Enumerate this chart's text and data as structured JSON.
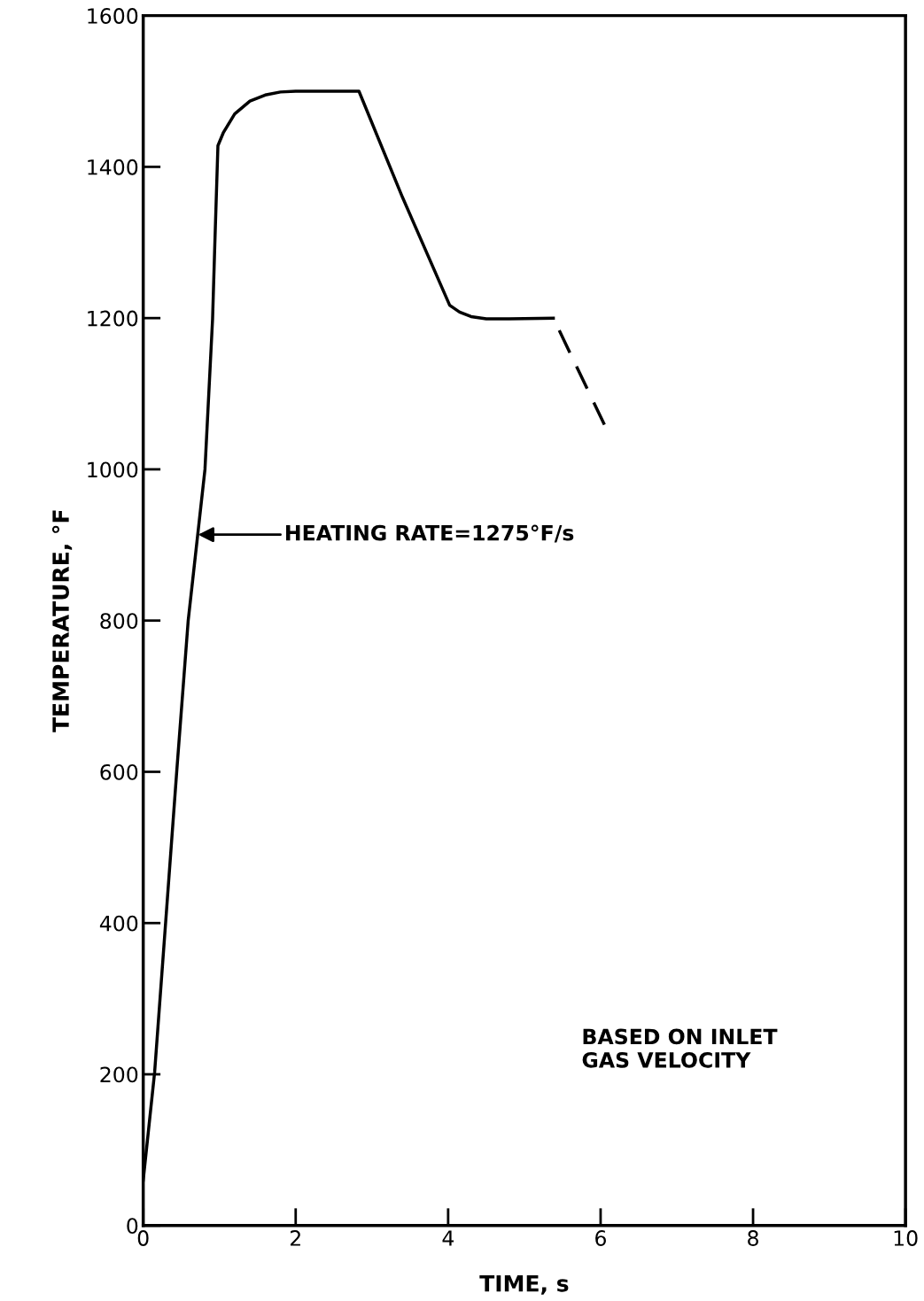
{
  "chart_data": {
    "type": "line",
    "xlabel": "TIME, s",
    "ylabel": "TEMPERATURE, °F",
    "xlim": [
      0,
      10
    ],
    "ylim": [
      0,
      1600
    ],
    "xticks": [
      0,
      2,
      4,
      6,
      8,
      10
    ],
    "yticks": [
      0,
      200,
      400,
      600,
      800,
      1000,
      1200,
      1400,
      1600
    ],
    "grid": false,
    "marker": "none",
    "series": [
      {
        "color": "#000000",
        "line_style": "solid",
        "x": [
          0,
          0.15,
          0.44,
          0.59,
          0.81,
          0.91,
          0.94,
          0.98,
          1.05,
          1.2,
          1.4,
          1.6,
          1.8,
          2.0,
          2.83,
          3.4,
          4.02,
          4.15,
          4.3,
          4.5,
          4.8,
          5.38
        ],
        "values": [
          60,
          203,
          601,
          800,
          1000,
          1199,
          1300,
          1428,
          1445,
          1470,
          1487,
          1495,
          1499,
          1500,
          1500,
          1360,
          1217,
          1208,
          1202,
          1199,
          1199,
          1200
        ]
      },
      {
        "color": "#000000",
        "line_style": "dashed",
        "x": [
          5.38,
          6.05
        ],
        "values": [
          1200,
          1059
        ]
      }
    ],
    "annotations": [
      "HEATING RATE=1275°F/s",
      "BASED ON INLET\nGAS VELOCITY"
    ]
  }
}
